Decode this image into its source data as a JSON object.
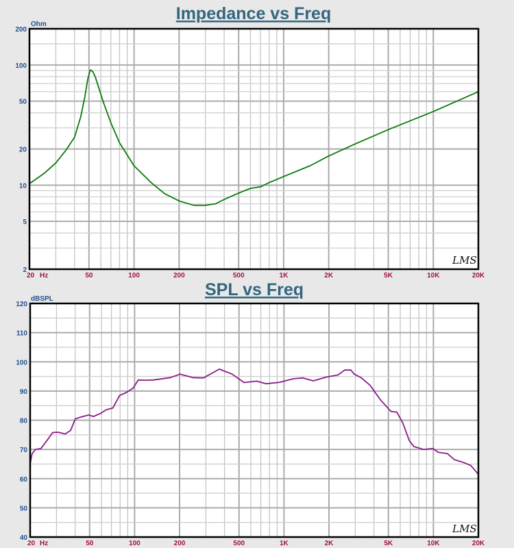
{
  "chart_data": [
    {
      "type": "line",
      "title": "Impedance vs Freq",
      "ylabel": "Ohm",
      "xlabel": "Hz",
      "xscale": "log",
      "yscale": "log",
      "xlim": [
        20,
        20000
      ],
      "ylim": [
        2,
        200
      ],
      "grid": true,
      "logo": "LMS",
      "x_ticks": [
        "20",
        "50",
        "100",
        "200",
        "500",
        "1K",
        "2K",
        "5K",
        "10K",
        "20K"
      ],
      "x_tick_values": [
        20,
        50,
        100,
        200,
        500,
        1000,
        2000,
        5000,
        10000,
        20000
      ],
      "y_ticks": [
        "2",
        "5",
        "10",
        "20",
        "50",
        "100",
        "200"
      ],
      "y_tick_values": [
        2,
        5,
        10,
        20,
        50,
        100,
        200
      ],
      "color": "#0a7a0a",
      "x": [
        20,
        25,
        30,
        35,
        40,
        44,
        47,
        49,
        51,
        53,
        55,
        58,
        62,
        70,
        80,
        100,
        130,
        160,
        200,
        250,
        300,
        350,
        400,
        500,
        600,
        700,
        800,
        1000,
        1500,
        2000,
        3000,
        5000,
        10000,
        20000
      ],
      "y": [
        10.3,
        12.5,
        15.3,
        19.5,
        25,
        37,
        55,
        76,
        91,
        88,
        80,
        65,
        50,
        33,
        22.5,
        14.5,
        10.5,
        8.5,
        7.4,
        6.8,
        6.8,
        7.0,
        7.6,
        8.6,
        9.4,
        9.7,
        10.5,
        11.8,
        14.5,
        17.5,
        22,
        29,
        41,
        60
      ]
    },
    {
      "type": "line",
      "title": "SPL vs Freq",
      "ylabel": "dBSPL",
      "xlabel": "Hz",
      "xscale": "log",
      "yscale": "linear",
      "xlim": [
        20,
        20000
      ],
      "ylim": [
        40,
        120
      ],
      "grid": true,
      "logo": "LMS",
      "x_ticks": [
        "20",
        "50",
        "100",
        "200",
        "500",
        "1K",
        "2K",
        "5K",
        "10K",
        "20K"
      ],
      "x_tick_values": [
        20,
        50,
        100,
        200,
        500,
        1000,
        2000,
        5000,
        10000,
        20000
      ],
      "y_ticks": [
        "40",
        "50",
        "60",
        "70",
        "80",
        "90",
        "100",
        "110",
        "120"
      ],
      "y_tick_values": [
        40,
        50,
        60,
        70,
        80,
        90,
        100,
        110,
        120
      ],
      "color": "#8a1a8a",
      "x": [
        20,
        20.6,
        21.7,
        23.6,
        26.3,
        28.3,
        30.8,
        34.3,
        37.3,
        40.1,
        44.5,
        49.3,
        53,
        59,
        64.5,
        71.6,
        79.4,
        88,
        97.6,
        106,
        118,
        134,
        173,
        202,
        246,
        289,
        369,
        450,
        541,
        656,
        761,
        935,
        1150,
        1340,
        1570,
        1930,
        2300,
        2550,
        2800,
        2955,
        3280,
        3770,
        4420,
        5200,
        5690,
        6250,
        6900,
        7400,
        8600,
        9900,
        10800,
        12400,
        13800,
        16000,
        17800,
        20000
      ],
      "y": [
        65,
        68.5,
        70,
        70.3,
        73.5,
        75.8,
        75.9,
        75.3,
        76.5,
        80.5,
        81.2,
        81.8,
        81.3,
        82.3,
        83.6,
        84.2,
        88.5,
        89.5,
        91,
        93.8,
        93.7,
        93.8,
        94.6,
        95.8,
        94.6,
        94.5,
        97.5,
        95.8,
        92.9,
        93.4,
        92.5,
        93,
        94.2,
        94.5,
        93.5,
        94.8,
        95.5,
        97.2,
        97.2,
        95.8,
        94.6,
        92,
        87,
        83,
        82.8,
        79,
        73,
        71,
        70,
        70.3,
        69,
        68.6,
        66.5,
        65.5,
        64.5,
        61.5
      ]
    }
  ]
}
